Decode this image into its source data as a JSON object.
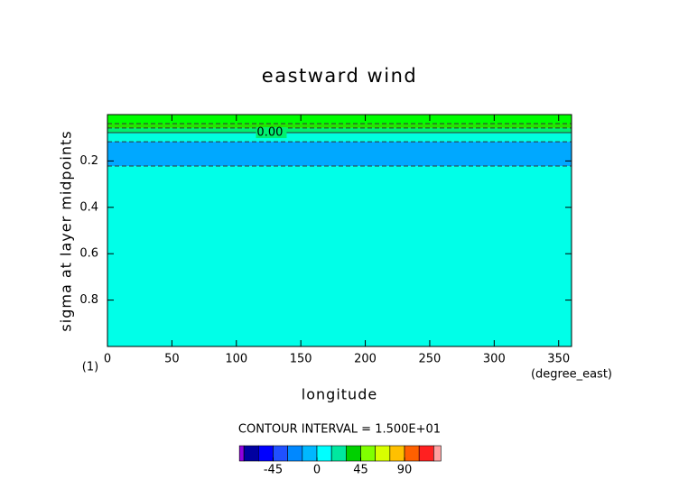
{
  "chart_data": {
    "type": "contour",
    "title": "eastward wind",
    "x_label": "longitude",
    "y_label": "sigma at layer midpoints",
    "x_units": "(degree_east)",
    "y_units": "(1)",
    "xlim": [
      0,
      360
    ],
    "xticks": [
      0,
      50,
      100,
      150,
      200,
      250,
      300,
      350
    ],
    "ylim": [
      1,
      0
    ],
    "yticks": [
      0.2,
      0.4,
      0.6,
      0.8
    ],
    "bands": [
      {
        "sigma": [
          0,
          0.039
        ],
        "color": "#00ff00"
      },
      {
        "sigma": [
          0.039,
          0.058
        ],
        "color": "#22e600"
      },
      {
        "sigma": [
          0.058,
          0.078
        ],
        "color": "#00f070"
      },
      {
        "sigma": [
          0.078,
          0.117
        ],
        "color": "#00ffe0"
      },
      {
        "sigma": [
          0.117,
          0.222
        ],
        "color": "#00a8ff"
      },
      {
        "sigma": [
          0.222,
          1
        ],
        "color": "#00ffe8"
      }
    ],
    "contour_lines": [
      0.039,
      0.058,
      0.078,
      0.117,
      0.222
    ],
    "contour_label": {
      "line": 0.078,
      "label": "0.00"
    },
    "colorbar": {
      "title": "CONTOUR INTERVAL = 1.500E+01",
      "levels": [
        -75,
        -60,
        -45,
        -30,
        -15,
        0,
        15,
        30,
        45,
        60,
        75,
        90,
        105,
        120
      ],
      "colors": [
        "#9000e0",
        "#0000a0",
        "#0000ff",
        "#2050ff",
        "#0088ff",
        "#00b8ff",
        "#00ffff",
        "#00e8a0",
        "#00d000",
        "#80ff00",
        "#d8ff00",
        "#ffc000",
        "#ff6000",
        "#ff2020",
        "#ffa0a0"
      ],
      "ticks": [
        -45,
        0,
        45,
        90
      ]
    }
  }
}
